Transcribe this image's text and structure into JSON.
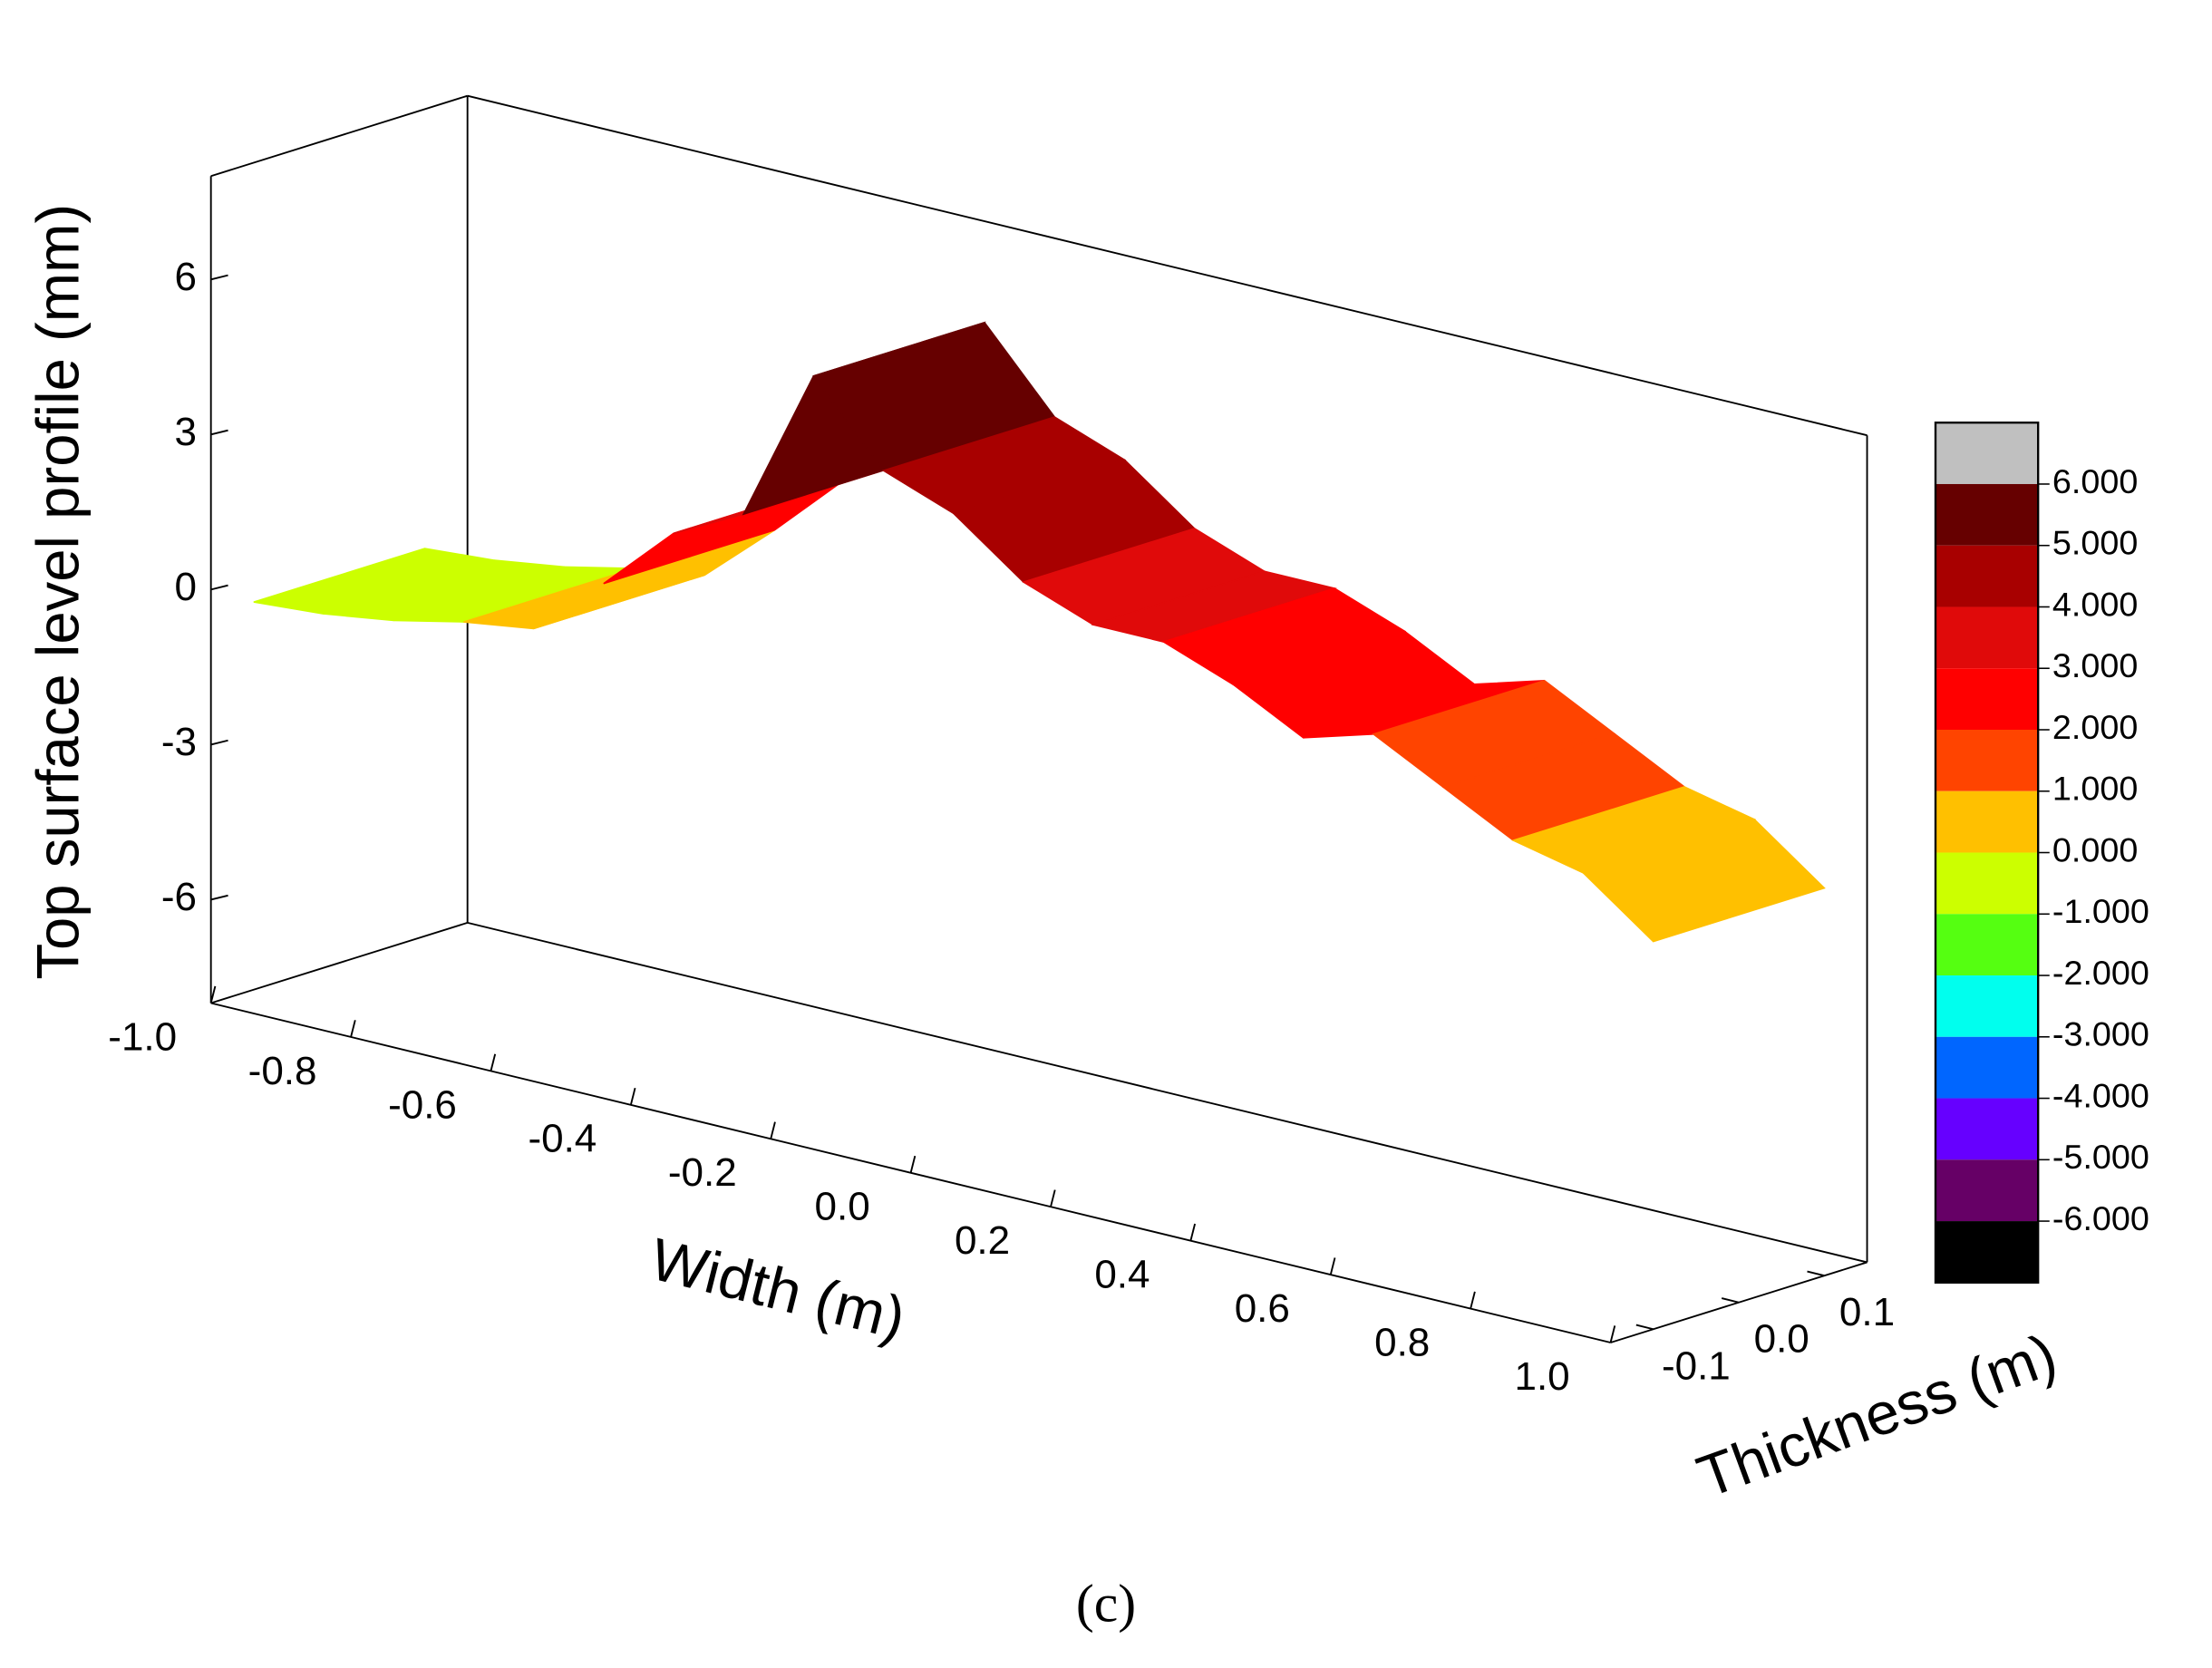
{
  "chart_data": {
    "type": "surface3d",
    "zlabel": "Top surface level profile (mm)",
    "xlabel": "Width (m)",
    "ylabel": "Thickness (m)",
    "caption": "(c)",
    "x": [
      -1.0,
      -0.9,
      -0.8,
      -0.7,
      -0.6,
      -0.5,
      -0.4,
      -0.3,
      -0.2,
      -0.1,
      0.0,
      0.1,
      0.2,
      0.3,
      0.4,
      0.5,
      0.6,
      0.7,
      0.8,
      0.9,
      1.0
    ],
    "values": [
      -0.5,
      -0.4,
      -0.2,
      0.1,
      0.3,
      1.5,
      2.8,
      3.5,
      6.5,
      5.0,
      4.5,
      3.5,
      3.0,
      3.0,
      2.5,
      1.8,
      2.2,
      1.5,
      0.8,
      0.5,
      -0.5
    ],
    "xlim": [
      -1.0,
      1.0
    ],
    "xticks": [
      {
        "value": -1.0,
        "label": "-1.0"
      },
      {
        "value": -0.8,
        "label": "-0.8"
      },
      {
        "value": -0.6,
        "label": "-0.6"
      },
      {
        "value": -0.4,
        "label": "-0.4"
      },
      {
        "value": -0.2,
        "label": "-0.2"
      },
      {
        "value": 0.0,
        "label": "0.0"
      },
      {
        "value": 0.2,
        "label": "0.2"
      },
      {
        "value": 0.4,
        "label": "0.4"
      },
      {
        "value": 0.6,
        "label": "0.6"
      },
      {
        "value": 0.8,
        "label": "0.8"
      },
      {
        "value": 1.0,
        "label": "1.0"
      }
    ],
    "ylim": [
      -0.15,
      0.15
    ],
    "yticks": [
      -0.1,
      {
        "value": 0.0,
        "label": "0.0"
      },
      0.1
    ],
    "zlim": [
      -8,
      8
    ],
    "zticks": [
      6,
      3,
      0,
      -3,
      -6
    ],
    "colorbar": {
      "levels": [
        {
          "value": 6,
          "label": "6.000"
        },
        {
          "value": 5,
          "label": "5.000"
        },
        {
          "value": 4,
          "label": "4.000"
        },
        {
          "value": 3,
          "label": "3.000"
        },
        {
          "value": 2,
          "label": "2.000"
        },
        {
          "value": 1,
          "label": "1.000"
        },
        {
          "value": 0,
          "label": "0.000"
        },
        {
          "value": -1,
          "label": "-1.000"
        },
        {
          "value": -2,
          "label": "-2.000"
        },
        {
          "value": -3,
          "label": "-3.000"
        },
        {
          "value": -4,
          "label": "-4.000"
        },
        {
          "value": -5,
          "label": "-5.000"
        },
        {
          "value": -6,
          "label": "-6.000"
        }
      ],
      "colors": [
        "#c0c0c0",
        "#660000",
        "#a80000",
        "#e00a0a",
        "#ff0000",
        "#ff4400",
        "#ffc000",
        "#ccff00",
        "#55ff11",
        "#00ffee",
        "#0066ff",
        "#6600ff",
        "#660066",
        "#000000"
      ]
    }
  }
}
